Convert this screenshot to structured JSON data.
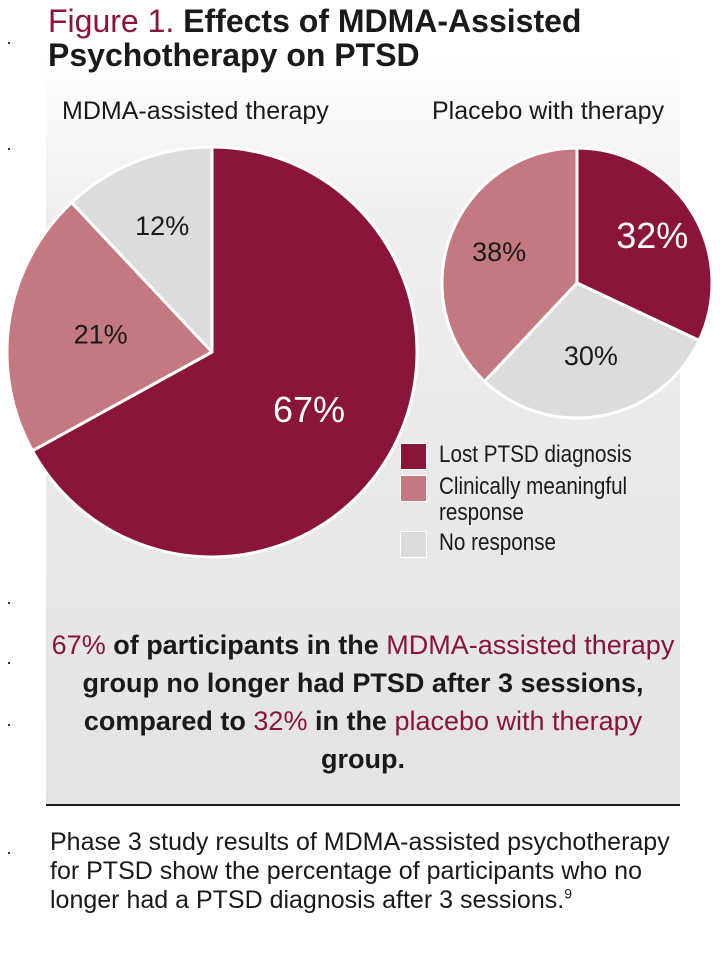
{
  "figure": {
    "label": "Figure 1.",
    "title_line1": "Effects of MDMA-Assisted",
    "title_line2": "Psychotherapy on PTSD"
  },
  "colors": {
    "lost": "#8a1538",
    "clinical": "#c47880",
    "none": "#dcdcdc"
  },
  "chart_data": [
    {
      "type": "pie",
      "title": "MDMA-assisted therapy",
      "slices": [
        {
          "key": "lost",
          "label": "Lost PTSD diagnosis",
          "value": 67,
          "text": "67%"
        },
        {
          "key": "clinical",
          "label": "Clinically meaningful response",
          "value": 21,
          "text": "21%"
        },
        {
          "key": "none",
          "label": "No response",
          "value": 12,
          "text": "12%"
        }
      ]
    },
    {
      "type": "pie",
      "title": "Placebo with therapy",
      "slices": [
        {
          "key": "lost",
          "label": "Lost PTSD diagnosis",
          "value": 32,
          "text": "32%"
        },
        {
          "key": "none",
          "label": "No response",
          "value": 30,
          "text": "30%"
        },
        {
          "key": "clinical",
          "label": "Clinically meaningful response",
          "value": 38,
          "text": "38%"
        }
      ]
    }
  ],
  "legend": [
    {
      "key": "lost",
      "label": "Lost PTSD diagnosis"
    },
    {
      "key": "clinical",
      "label": "Clinically meaningful response"
    },
    {
      "key": "none",
      "label": "No response"
    }
  ],
  "summary": {
    "p1_hl": "67%",
    "p1": " of participants in the ",
    "p2_hl": "MDMA-assisted therapy",
    "p2": " group no longer had PTSD after 3 sessions, compared to ",
    "p3_hl": "32%",
    "p3": " in the ",
    "p4_hl": "placebo with therapy",
    "p4": " group."
  },
  "caption": {
    "text": "Phase 3 study results of MDMA-assisted psychotherapy for PTSD show the percentage of participants who no longer had a PTSD diagnosis after 3 sessions.",
    "ref": "9"
  }
}
